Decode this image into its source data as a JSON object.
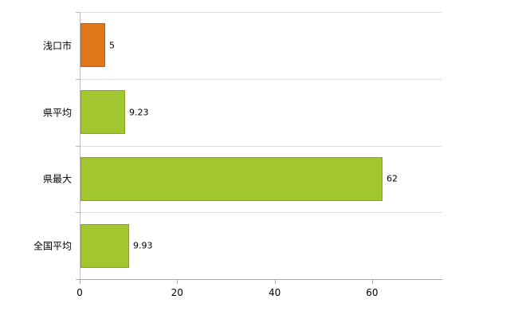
{
  "chart_data": {
    "type": "bar",
    "orientation": "horizontal",
    "title": "",
    "xlabel": "",
    "ylabel": "",
    "categories": [
      "浅口市",
      "県平均",
      "県最大",
      "全国平均"
    ],
    "values": [
      5,
      9.23,
      62,
      9.93
    ],
    "value_labels": [
      "5",
      "9.23",
      "62",
      "9.93"
    ],
    "series": [
      {
        "name": "value",
        "values": [
          5,
          9.23,
          62,
          9.93
        ]
      }
    ],
    "bar_fill_colors": [
      "#e2761b",
      "#a2c62f",
      "#a2c62f",
      "#a2c62f"
    ],
    "bar_border_colors": [
      "#c05f12",
      "#84a625",
      "#84a625",
      "#84a625"
    ],
    "xticks": [
      0,
      20,
      40,
      60
    ],
    "xtick_labels": [
      "0",
      "20",
      "40",
      "60"
    ],
    "xlim": [
      0,
      74.4
    ],
    "grid": "horizontal category separator lines",
    "legend": "none",
    "background_color": "#ffffff",
    "axis_color": "#aaaaaa",
    "gridline_color": "#dedede"
  }
}
